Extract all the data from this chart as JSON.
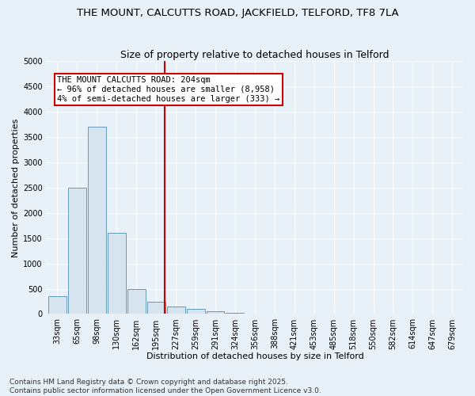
{
  "title": "THE MOUNT, CALCUTTS ROAD, JACKFIELD, TELFORD, TF8 7LA",
  "subtitle": "Size of property relative to detached houses in Telford",
  "xlabel": "Distribution of detached houses by size in Telford",
  "ylabel": "Number of detached properties",
  "categories": [
    "33sqm",
    "65sqm",
    "98sqm",
    "130sqm",
    "162sqm",
    "195sqm",
    "227sqm",
    "259sqm",
    "291sqm",
    "324sqm",
    "356sqm",
    "388sqm",
    "421sqm",
    "453sqm",
    "485sqm",
    "518sqm",
    "550sqm",
    "582sqm",
    "614sqm",
    "647sqm",
    "679sqm"
  ],
  "values": [
    350,
    2500,
    3700,
    1600,
    500,
    250,
    150,
    100,
    50,
    20,
    5,
    0,
    0,
    0,
    0,
    0,
    0,
    0,
    0,
    0,
    0
  ],
  "bar_color": "#d6e4f0",
  "bar_edge_color": "#6699bb",
  "vline_color": "#cc0000",
  "vline_pos": 5.42,
  "annotation_text": "THE MOUNT CALCUTTS ROAD: 204sqm\n← 96% of detached houses are smaller (8,958)\n4% of semi-detached houses are larger (333) →",
  "annotation_box_facecolor": "#ffffff",
  "annotation_box_edgecolor": "#cc0000",
  "ylim": [
    0,
    5000
  ],
  "yticks": [
    0,
    500,
    1000,
    1500,
    2000,
    2500,
    3000,
    3500,
    4000,
    4500,
    5000
  ],
  "footer1": "Contains HM Land Registry data © Crown copyright and database right 2025.",
  "footer2": "Contains public sector information licensed under the Open Government Licence v3.0.",
  "bg_color": "#e8f0f8",
  "grid_color": "#ffffff",
  "title_fontsize": 9.5,
  "axis_label_fontsize": 8,
  "tick_fontsize": 7,
  "footer_fontsize": 6.5,
  "annotation_fontsize": 7.5
}
